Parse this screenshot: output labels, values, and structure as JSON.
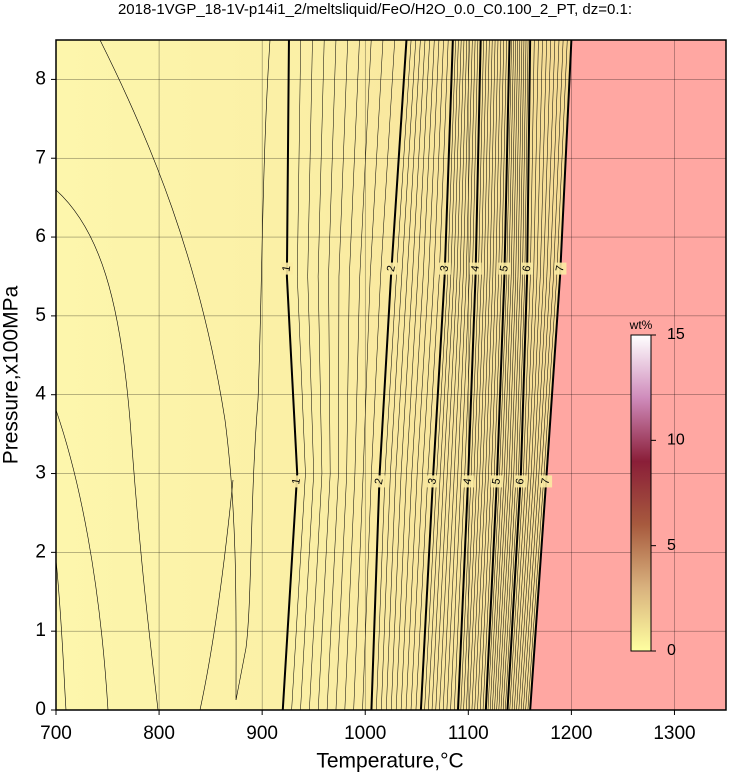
{
  "chart_data": {
    "type": "contour",
    "title": "2018-1VGP_18-1V-p14i1_2/meltsliquid/FeO/H2O_0.0_C0.100_2_PT, dz=0.1:",
    "x_label": "Temperature,°C",
    "y_label": "Pressure,x100MPa",
    "xlim": [
      700,
      1350
    ],
    "xticks": [
      700,
      800,
      900,
      1000,
      1100,
      1200,
      1300
    ],
    "ylim": [
      0,
      8.5
    ],
    "yticks": [
      0,
      1,
      2,
      3,
      4,
      5,
      6,
      7,
      8
    ],
    "grid": true,
    "contours": [
      {
        "level": 1,
        "pressure": [
          0,
          3,
          5.5,
          8.5
        ],
        "temperature": [
          920,
          934,
          924,
          926
        ]
      },
      {
        "level": 2,
        "pressure": [
          0,
          3,
          5.5,
          8.5
        ],
        "temperature": [
          1006,
          1014,
          1025,
          1040
        ]
      },
      {
        "level": 3,
        "pressure": [
          0,
          3,
          5.5,
          8.5
        ],
        "temperature": [
          1054,
          1066,
          1077,
          1085
        ]
      },
      {
        "level": 4,
        "pressure": [
          0,
          3,
          5.5,
          8.5
        ],
        "temperature": [
          1090,
          1100,
          1107,
          1112
        ]
      },
      {
        "level": 5,
        "pressure": [
          0,
          3,
          5.5,
          8.5
        ],
        "temperature": [
          1117,
          1128,
          1135,
          1140
        ]
      },
      {
        "level": 6,
        "pressure": [
          0,
          3,
          5.5,
          8.5
        ],
        "temperature": [
          1138,
          1151,
          1157,
          1160
        ]
      },
      {
        "level": 7,
        "pressure": [
          0,
          3,
          5.5,
          8.5
        ],
        "temperature": [
          1160,
          1176,
          1189,
          1200
        ]
      }
    ],
    "region_color": "#ffa7a2",
    "colorbar": {
      "label": "wt%",
      "lim": [
        0,
        15
      ],
      "ticks": [
        0,
        5,
        10,
        15
      ],
      "colors": [
        "#ffffa0",
        "#d9b27e",
        "#a75a3e",
        "#8a1e38",
        "#cf8bbb",
        "#ffffff"
      ]
    }
  }
}
